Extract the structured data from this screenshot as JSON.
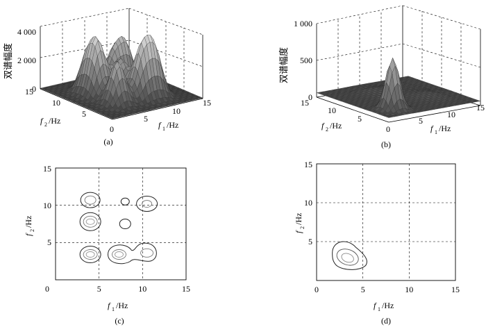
{
  "chart_data": [
    {
      "type": "surface",
      "panel": "a",
      "caption": "(a)",
      "zlabel": "双谱幅度",
      "zlim": [
        0,
        4000
      ],
      "z_ticks": [
        "0",
        "2 000",
        "4 000"
      ],
      "x_label_var": "f",
      "x_label_sub": "1",
      "x_label_unit": "/Hz",
      "y_label_var": "f",
      "y_label_sub": "2",
      "y_label_unit": "/Hz",
      "x_ticks": [
        "5",
        "10",
        "15"
      ],
      "y_ticks": [
        "0",
        "5",
        "10",
        "15"
      ],
      "peaks": [
        {
          "f1": 4,
          "f2": 4,
          "value": 2800
        },
        {
          "f1": 4,
          "f2": 8,
          "value": 3100
        },
        {
          "f1": 8,
          "f2": 4,
          "value": 3000
        },
        {
          "f1": 7,
          "f2": 7,
          "value": 2200
        },
        {
          "f1": 10,
          "f2": 4,
          "value": 3100
        },
        {
          "f1": 4,
          "f2": 10,
          "value": 2500
        },
        {
          "f1": 10,
          "f2": 10,
          "value": 2600
        },
        {
          "f1": 8,
          "f2": 10,
          "value": 2000
        }
      ]
    },
    {
      "type": "surface",
      "panel": "b",
      "caption": "(b)",
      "zlabel": "双谱幅度",
      "zlim": [
        0,
        1000
      ],
      "z_ticks": [
        "0",
        "500",
        "1 000"
      ],
      "x_label_var": "f",
      "x_label_sub": "1",
      "x_label_unit": "/Hz",
      "y_label_var": "f",
      "y_label_sub": "2",
      "y_label_unit": "/Hz",
      "x_ticks": [
        "5",
        "10",
        "15"
      ],
      "y_ticks": [
        "0",
        "5",
        "10",
        "15"
      ],
      "peaks": [
        {
          "f1": 3,
          "f2": 3,
          "value": 700
        }
      ]
    },
    {
      "type": "contour",
      "panel": "c",
      "caption": "(c)",
      "xlim": [
        0,
        15
      ],
      "ylim": [
        0,
        15
      ],
      "x_ticks": [
        "0",
        "5",
        "10",
        "15"
      ],
      "y_ticks": [
        "5",
        "10",
        "15"
      ],
      "x_label_var": "f",
      "x_label_sub": "1",
      "x_label_unit": "/Hz",
      "y_label_var": "f",
      "y_label_sub": "2",
      "y_label_unit": "/Hz",
      "grid": true,
      "centers": [
        {
          "f1": 4,
          "f2": 10.7
        },
        {
          "f1": 4,
          "f2": 7.8
        },
        {
          "f1": 4,
          "f2": 3.4
        },
        {
          "f1": 7.3,
          "f2": 3.4
        },
        {
          "f1": 10.5,
          "f2": 3.6
        },
        {
          "f1": 10.5,
          "f2": 10.2
        },
        {
          "f1": 8,
          "f2": 7.5
        },
        {
          "f1": 8,
          "f2": 10.5
        }
      ]
    },
    {
      "type": "contour",
      "panel": "d",
      "caption": "(d)",
      "xlim": [
        0,
        15
      ],
      "ylim": [
        0,
        15
      ],
      "x_ticks": [
        "0",
        "5",
        "10",
        "15"
      ],
      "y_ticks": [
        "5",
        "10",
        "15"
      ],
      "x_label_var": "f",
      "x_label_sub": "1",
      "x_label_unit": "/Hz",
      "y_label_var": "f",
      "y_label_sub": "2",
      "y_label_unit": "/Hz",
      "grid": true,
      "centers": [
        {
          "f1": 3.2,
          "f2": 3.0
        }
      ]
    }
  ]
}
